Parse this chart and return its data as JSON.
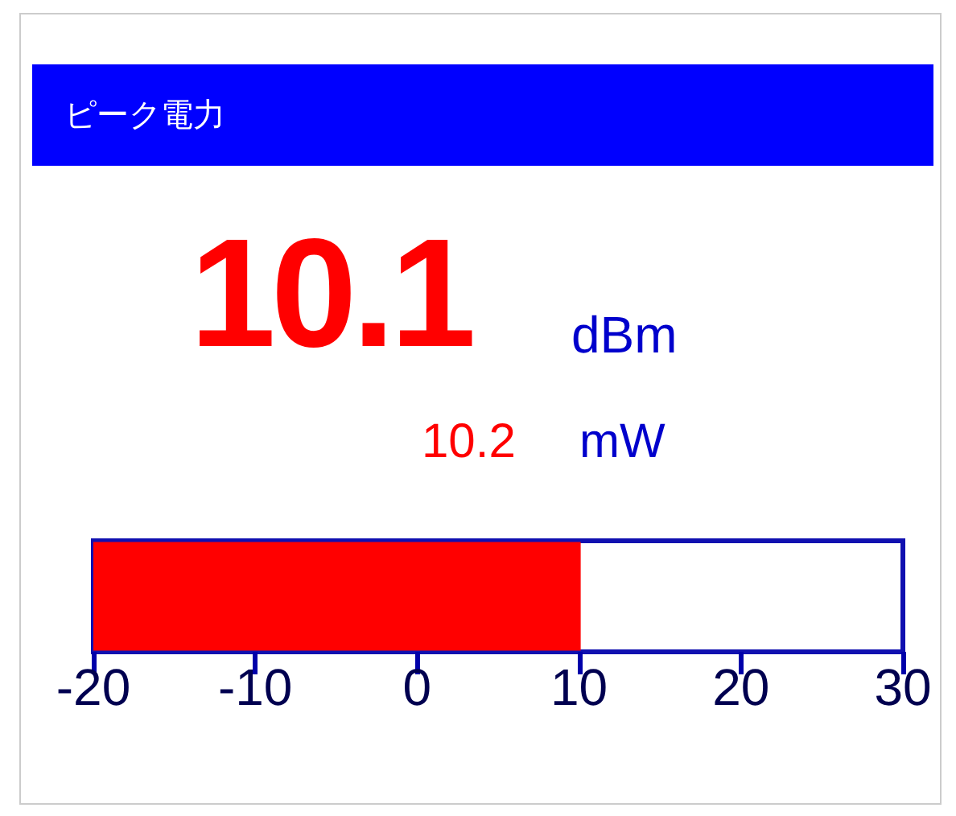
{
  "chart_data": {
    "type": "bar",
    "orientation": "horizontal",
    "title": "ピーク電力",
    "annotations": [
      "10.1",
      "dBm",
      "10.2",
      "mW"
    ],
    "categories": [
      null
    ],
    "base": [
      -20
    ],
    "values": [
      30.1
    ],
    "color": "#ff0000",
    "xlim": [
      -20,
      30
    ],
    "xticks": [
      -20,
      -10,
      0,
      10,
      20,
      30
    ],
    "grid": false
  }
}
